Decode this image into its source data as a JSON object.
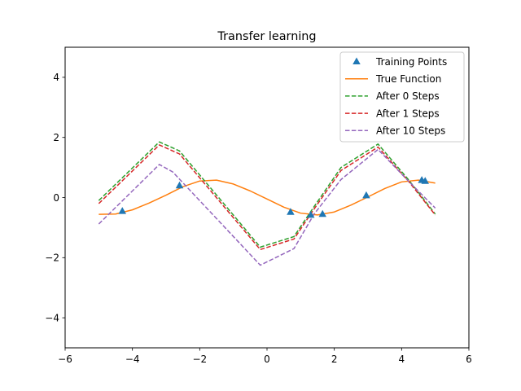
{
  "chart_data": {
    "type": "line",
    "title": "Transfer learning",
    "xlabel": "",
    "ylabel": "",
    "xlim": [
      -6,
      6
    ],
    "ylim": [
      -5,
      5
    ],
    "xticks": [
      -6,
      -4,
      -2,
      0,
      2,
      4,
      6
    ],
    "yticks": [
      -4,
      -2,
      0,
      2,
      4
    ],
    "xtick_labels": [
      "−6",
      "−4",
      "−2",
      "0",
      "2",
      "4",
      "6"
    ],
    "ytick_labels": [
      "−4",
      "−2",
      "0",
      "2",
      "4"
    ],
    "grid": false,
    "legend_position": "top-right",
    "training_points": {
      "name": "Training Points",
      "color": "#1f77b4",
      "marker": "triangle",
      "x": [
        -4.3,
        -2.6,
        0.7,
        1.3,
        1.65,
        2.95,
        4.6,
        4.7
      ],
      "y": [
        -0.45,
        0.4,
        -0.48,
        -0.58,
        -0.55,
        0.07,
        0.58,
        0.55
      ]
    },
    "series": [
      {
        "name": "True Function",
        "color": "#ff7f0e",
        "dashed": false,
        "x": [
          -5,
          -4.5,
          -4,
          -3.5,
          -3,
          -2.5,
          -2,
          -1.5,
          -1,
          -0.5,
          0,
          0.5,
          1,
          1.5,
          2,
          2.5,
          3,
          3.5,
          4,
          4.5,
          5
        ],
        "y": [
          -0.56,
          -0.55,
          -0.41,
          -0.18,
          0.08,
          0.36,
          0.55,
          0.58,
          0.45,
          0.22,
          -0.05,
          -0.32,
          -0.52,
          -0.58,
          -0.48,
          -0.25,
          0.02,
          0.3,
          0.52,
          0.58,
          0.48
        ]
      },
      {
        "name": "After 0 Steps",
        "color": "#2ca02c",
        "dashed": true,
        "x": [
          -5,
          -3.2,
          -2.6,
          -0.2,
          0.8,
          1.4,
          2.2,
          3.3,
          4.2,
          5
        ],
        "y": [
          -0.1,
          1.85,
          1.55,
          -1.65,
          -1.3,
          -0.3,
          1.0,
          1.78,
          0.6,
          -0.55
        ]
      },
      {
        "name": "After 1 Steps",
        "color": "#d62728",
        "dashed": true,
        "x": [
          -5,
          -3.2,
          -2.6,
          -0.2,
          0.8,
          1.4,
          2.2,
          3.3,
          4.2,
          5
        ],
        "y": [
          -0.2,
          1.75,
          1.45,
          -1.73,
          -1.38,
          -0.38,
          0.9,
          1.68,
          0.55,
          -0.58
        ]
      },
      {
        "name": "After 10 Steps",
        "color": "#9467bd",
        "dashed": true,
        "x": [
          -5,
          -3.2,
          -2.8,
          -0.2,
          0.8,
          1.4,
          2.2,
          3.3,
          4.2,
          5
        ],
        "y": [
          -0.88,
          1.1,
          0.85,
          -2.25,
          -1.7,
          -0.55,
          0.6,
          1.6,
          0.55,
          -0.35
        ]
      }
    ]
  }
}
